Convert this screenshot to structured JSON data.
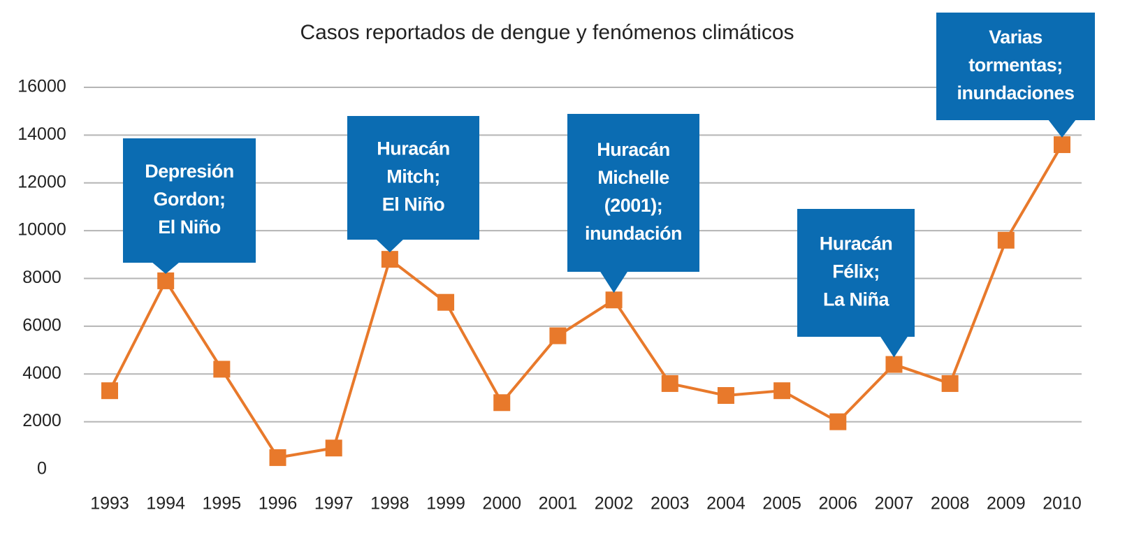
{
  "chart_data": {
    "type": "line",
    "title": "Casos reportados de dengue y fenómenos climáticos",
    "categories": [
      "1993",
      "1994",
      "1995",
      "1996",
      "1997",
      "1998",
      "1999",
      "2000",
      "2001",
      "2002",
      "2003",
      "2004",
      "2005",
      "2006",
      "2007",
      "2008",
      "2009",
      "2010"
    ],
    "series": [
      {
        "name": "Casos",
        "color": "#e8792b",
        "values": [
          3300,
          7900,
          4200,
          500,
          900,
          8800,
          7000,
          2800,
          5600,
          7100,
          3600,
          3100,
          3300,
          2000,
          4400,
          3600,
          9600,
          13600
        ]
      }
    ],
    "ylim": [
      0,
      16000
    ],
    "yticks": [
      0,
      2000,
      4000,
      6000,
      8000,
      10000,
      12000,
      14000,
      16000
    ],
    "grid": true,
    "annotation_color": "#0b6cb2",
    "annotations": [
      {
        "x": "1994",
        "lines": [
          "Depresión",
          "Gordon;",
          "El Niño"
        ]
      },
      {
        "x": "1998",
        "lines": [
          "Huracán",
          "Mitch;",
          "El Niño"
        ]
      },
      {
        "x": "2002",
        "lines": [
          "Huracán",
          "Michelle",
          "(2001);",
          "inundación"
        ]
      },
      {
        "x": "2007",
        "lines": [
          "Huracán",
          "Félix;",
          "La Niña"
        ]
      },
      {
        "x": "2010",
        "lines": [
          "Varias",
          "tormentas;",
          "inundaciones"
        ]
      }
    ]
  }
}
